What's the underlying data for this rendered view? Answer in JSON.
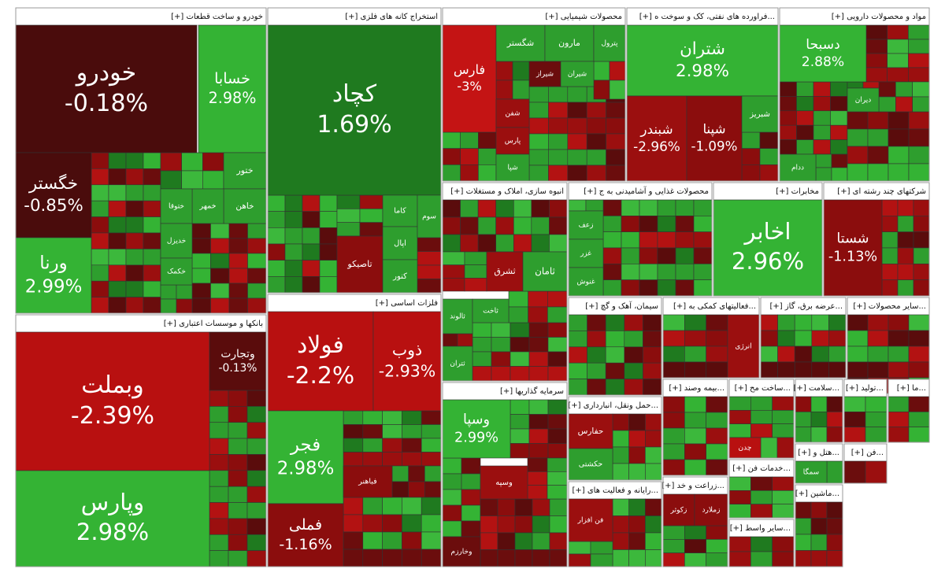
{
  "chart_data": {
    "type": "treemap",
    "sectors": [
      {
        "name": "خودرو و ساخت قطعات [+]",
        "tiles": [
          {
            "name": "خودرو",
            "value": -0.18,
            "value_label": "-0.18%",
            "color": "#4a0c0c"
          },
          {
            "name": "خسابا",
            "value": 2.98,
            "value_label": "2.98%",
            "color": "#34b334"
          },
          {
            "name": "خگستر",
            "value": -0.85,
            "value_label": "-0.85%",
            "color": "#4a0c0c"
          },
          {
            "name": "ورنا",
            "value": 2.99,
            "value_label": "2.99%",
            "color": "#34b334"
          },
          {
            "name": "ختور",
            "color": "#2e9e2e"
          },
          {
            "name": "خاهن",
            "color": "#2e9e2e"
          },
          {
            "name": "خمهر",
            "color": "#2e9e2e"
          },
          {
            "name": "ختوقا",
            "color": "#2e9e2e"
          },
          {
            "name": "خدیزل",
            "color": "#2e9e2e"
          },
          {
            "name": "خکمک",
            "color": "#2e9e2e"
          }
        ]
      },
      {
        "name": "استخراج کانه های فلزی [+]",
        "tiles": [
          {
            "name": "کچاد",
            "value": 1.69,
            "value_label": "1.69%",
            "color": "#1f7a1f"
          },
          {
            "name": "تاصیکو",
            "color": "#8b0d0d"
          },
          {
            "name": "کاما",
            "color": "#2e9e2e"
          },
          {
            "name": "اپال",
            "color": "#2e9e2e"
          },
          {
            "name": "کنور",
            "color": "#2e9e2e"
          },
          {
            "name": "سوم",
            "color": "#2e9e2e"
          }
        ]
      },
      {
        "name": "محصولات شیمیایی [+]",
        "tiles": [
          {
            "name": "فارس",
            "value": -3,
            "value_label": "-3%",
            "color": "#c41414"
          },
          {
            "name": "شگستر",
            "color": "#2e9e2e"
          },
          {
            "name": "مارون",
            "color": "#2e9e2e"
          },
          {
            "name": "پترول",
            "color": "#2e9e2e"
          },
          {
            "name": "شیراز",
            "color": "#6b0d0d"
          },
          {
            "name": "شیران",
            "color": "#2e9e2e"
          },
          {
            "name": "شفن",
            "color": "#9b0f0f"
          },
          {
            "name": "پارس",
            "color": "#9b0f0f"
          },
          {
            "name": "شپا",
            "color": "#2e9e2e"
          }
        ]
      },
      {
        "name": "...فراورده های نفتی، کک و سوخت ه [+]",
        "tiles": [
          {
            "name": "شتران",
            "value": 2.98,
            "value_label": "2.98%",
            "color": "#34b334"
          },
          {
            "name": "شبندر",
            "value": -2.96,
            "value_label": "-2.96%",
            "color": "#9b0f0f"
          },
          {
            "name": "شپنا",
            "value": -1.09,
            "value_label": "-1.09%",
            "color": "#8b0d0d"
          },
          {
            "name": "شبریز",
            "color": "#2e9e2e"
          }
        ]
      },
      {
        "name": "مواد و محصولات دارویی [+]",
        "tiles": [
          {
            "name": "دسبحا",
            "value": 2.88,
            "value_label": "2.88%",
            "color": "#34b334"
          },
          {
            "name": "دیران",
            "color": "#2e9e2e"
          },
          {
            "name": "ددام",
            "color": "#2e9e2e"
          }
        ]
      },
      {
        "name": "بانکها و موسسات اعتباری [+]",
        "tiles": [
          {
            "name": "وبملت",
            "value": -2.39,
            "value_label": "-2.39%",
            "color": "#b81010"
          },
          {
            "name": "وپارس",
            "value": 2.98,
            "value_label": "2.98%",
            "color": "#34b334"
          },
          {
            "name": "وتجارت",
            "value": -0.13,
            "value_label": "-0.13%",
            "color": "#5a0c0c"
          }
        ]
      },
      {
        "name": "فلزات اساسی [+]",
        "tiles": [
          {
            "name": "فولاد",
            "value": -2.2,
            "value_label": "-2.2%",
            "color": "#b81010"
          },
          {
            "name": "ذوب",
            "value": -2.93,
            "value_label": "-2.93%",
            "color": "#b81010"
          },
          {
            "name": "فجر",
            "value": 2.98,
            "value_label": "2.98%",
            "color": "#34b334"
          },
          {
            "name": "فباهنر",
            "color": "#8b0d0d"
          },
          {
            "name": "فملی",
            "value": -1.16,
            "value_label": "-1.16%",
            "color": "#8b0d0d"
          }
        ]
      },
      {
        "name": "انبوه سازی، املاک و مستغلات [+]",
        "tiles": [
          {
            "name": "ثشرق",
            "color": "#9b0f0f"
          },
          {
            "name": "ثامان",
            "color": "#2e9e2e"
          },
          {
            "name": "ثالوند",
            "color": "#2e9e2e"
          },
          {
            "name": "ثاخت",
            "color": "#2e9e2e"
          },
          {
            "name": "ثتران",
            "color": "#2e9e2e"
          }
        ]
      },
      {
        "name": "محصولات غذایی و آشامیدنی به ج [+]",
        "tiles": [
          {
            "name": "زعف",
            "color": "#2e9e2e"
          },
          {
            "name": "غزر",
            "color": "#2e9e2e"
          },
          {
            "name": "غنوش",
            "color": "#2e9e2e"
          }
        ]
      },
      {
        "name": "مخابرات [+]",
        "tiles": [
          {
            "name": "اخابر",
            "value": 2.96,
            "value_label": "2.96%",
            "color": "#34b334"
          }
        ]
      },
      {
        "name": "شرکتهای چند رشته ای [+]",
        "tiles": [
          {
            "name": "شستا",
            "value": -1.13,
            "value_label": "-1.13%",
            "color": "#8b0d0d"
          }
        ]
      },
      {
        "name": "سرمایه گذاریها [+]",
        "tiles": [
          {
            "name": "وسپا",
            "value": 2.99,
            "value_label": "2.99%",
            "color": "#34b334"
          },
          {
            "name": "وسپه",
            "color": "#9b0f0f"
          },
          {
            "name": "وخارزم",
            "color": "#6b0d0d"
          }
        ]
      },
      {
        "name": "سیمان، آهک و گچ [+]",
        "tiles": []
      },
      {
        "name": "...فعالیتهای کمکی به [+]",
        "tiles": [
          {
            "name": "انرژی",
            "color": "#9b0f0f"
          }
        ]
      },
      {
        "name": "...عرضه برق، گاز [+]",
        "tiles": []
      },
      {
        "name": "...سایر محصولات [+]",
        "tiles": []
      },
      {
        "name": "...حمل ونقل، انبارداری [+]",
        "tiles": [
          {
            "name": "حفارس",
            "color": "#9b0f0f"
          },
          {
            "name": "حکشتی",
            "color": "#2e9e2e"
          }
        ]
      },
      {
        "name": "...رایانه و فعالیت های [+]",
        "tiles": [
          {
            "name": "فن افزار",
            "color": "#9b0f0f"
          }
        ]
      },
      {
        "name": "...بیمه وصند [+]",
        "tiles": []
      },
      {
        "name": "...ساخت مح [+]",
        "tiles": [
          {
            "name": "چدن",
            "color": "#b81010"
          }
        ]
      },
      {
        "name": "...زراعت و خد [+]",
        "tiles": [
          {
            "name": "زکوثر",
            "color": "#8b0d0d"
          },
          {
            "name": "زملارد",
            "color": "#8b0d0d"
          }
        ]
      },
      {
        "name": "...خدمات فن [+]",
        "tiles": []
      },
      {
        "name": "...سایر واسط [+]",
        "tiles": []
      },
      {
        "name": "...سلامت [+]",
        "tiles": []
      },
      {
        "name": "...تولید [+]",
        "tiles": []
      },
      {
        "name": "...ما [+]",
        "tiles": []
      },
      {
        "name": "...هتل و [+]",
        "tiles": [
          {
            "name": "سمگا",
            "color": "#2e9e2e"
          }
        ]
      },
      {
        "name": "...فن [+]",
        "tiles": []
      },
      {
        "name": "...ماشین [+]",
        "tiles": []
      }
    ]
  }
}
